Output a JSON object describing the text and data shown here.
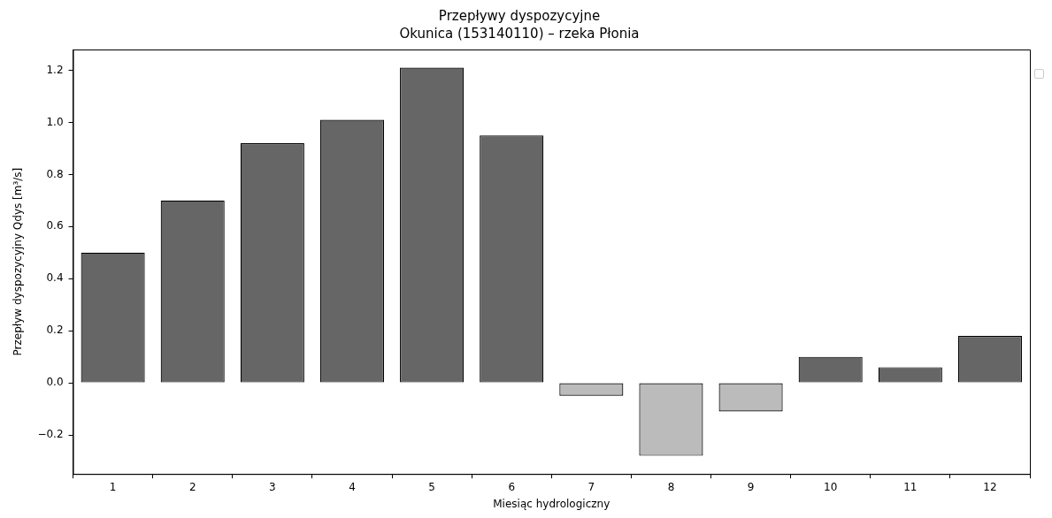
{
  "chart_data": {
    "type": "bar",
    "title": "Przepływy dyspozycyjne",
    "subtitle": "Okunica (153140110) – rzeka Płonia",
    "xlabel": "Miesiąc hydrologiczny",
    "ylabel": "Przepływ dyspozycyjny Qdys [m³/s]",
    "categories": [
      "1",
      "2",
      "3",
      "4",
      "5",
      "6",
      "7",
      "8",
      "9",
      "10",
      "11",
      "12"
    ],
    "values": [
      0.5,
      0.7,
      0.92,
      1.01,
      1.21,
      0.95,
      -0.05,
      -0.28,
      -0.11,
      0.1,
      0.06,
      0.18
    ],
    "colors": [
      "#666666",
      "#666666",
      "#666666",
      "#666666",
      "#666666",
      "#666666",
      "#bbbbbb",
      "#bbbbbb",
      "#bbbbbb",
      "#666666",
      "#666666",
      "#666666"
    ],
    "ylim": [
      -0.35,
      1.28
    ],
    "yticks": [
      {
        "value": -0.2,
        "label": "−0.2"
      },
      {
        "value": 0,
        "label": "0.0"
      },
      {
        "value": 0.2,
        "label": "0.2"
      },
      {
        "value": 0.4,
        "label": "0.4"
      },
      {
        "value": 0.6,
        "label": "0.6"
      },
      {
        "value": 0.8,
        "label": "0.8"
      },
      {
        "value": 1,
        "label": "1.0"
      },
      {
        "value": 1.2,
        "label": "1.2"
      }
    ],
    "grid": false
  }
}
